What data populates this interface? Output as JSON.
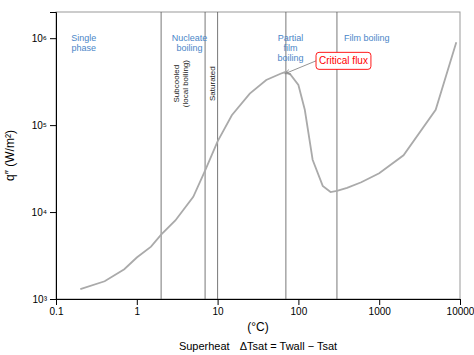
{
  "chart_data": {
    "type": "line",
    "x": [
      0.2,
      0.4,
      0.7,
      1.0,
      1.5,
      2.0,
      3.0,
      5.0,
      7.0,
      10.0,
      15.0,
      25.0,
      40.0,
      60.0,
      70.0,
      80.0,
      100.0,
      120.0,
      150.0,
      200.0,
      250.0,
      300.0,
      400.0,
      600.0,
      1000.0,
      2000.0,
      5000.0,
      9000.0
    ],
    "values": [
      1300,
      1600,
      2200,
      3000,
      4000,
      5500,
      8000,
      15000,
      30000,
      65000,
      130000,
      230000,
      330000,
      390000,
      410000,
      380000,
      290000,
      150000,
      40000,
      20000,
      17000,
      17500,
      19000,
      22000,
      28000,
      45000,
      150000,
      900000
    ],
    "color": "#aaaaaa",
    "xlabel": "(°C)",
    "ylabel": "q″  (W/m²)",
    "xlim": [
      0.1,
      10000
    ],
    "ylim": [
      1000,
      2000000
    ],
    "xticks": [
      0.1,
      1,
      10,
      100,
      1000,
      10000
    ],
    "yticks": [
      {
        "value": 1000,
        "label": "10³"
      },
      {
        "value": 10000,
        "label": "10⁴"
      },
      {
        "value": 100000,
        "label": "10⁵"
      },
      {
        "value": 1000000,
        "label": "10⁶"
      }
    ],
    "log": true,
    "grid": false,
    "vlines": {
      "values": [
        2.0,
        7.0,
        10.0,
        70.0,
        300.0
      ],
      "color": "#555555"
    },
    "region_labels": [
      {
        "text": "Single\nphase",
        "x": 0.22,
        "y": 1200000,
        "color": "#4a86c8"
      },
      {
        "text": "Nucleate\nboiling",
        "x": 4.5,
        "y": 1200000,
        "color": "#4a86c8"
      },
      {
        "text": "Partial\nfilm\nboiling",
        "x": 80,
        "y": 1200000,
        "color": "#4a86c8"
      },
      {
        "text": "Film boiling",
        "x": 700,
        "y": 1200000,
        "color": "#4a86c8"
      }
    ],
    "annotations": [
      {
        "text": "Subcooled\n(local boiling)",
        "x": 3.5,
        "y": 300000
      },
      {
        "text": "Saturated",
        "x": 8.5,
        "y": 300000
      }
    ],
    "callout": {
      "text": "Critical flux",
      "x": 180,
      "y": 500000,
      "arrow_x": 68,
      "arrow_y": 390000,
      "color": "red"
    },
    "footer": [
      "Superheat",
      "ΔTsat = Twall − Tsat"
    ]
  }
}
